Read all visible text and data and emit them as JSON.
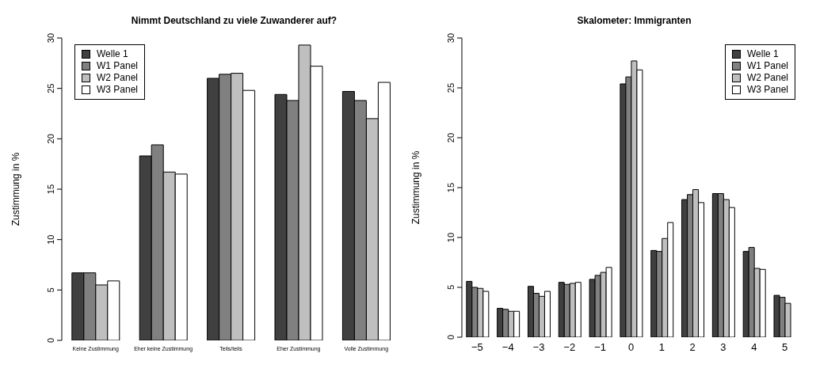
{
  "chart_data": [
    {
      "type": "bar",
      "title": "Nimmt Deutschland zu viele Zuwanderer auf?",
      "ylabel": "Zustimmung in %",
      "categories": [
        "Keine Zustimmung",
        "Eher keine Zustimmung",
        "Teils/teils",
        "Eher Zustimmung",
        "Volle Zustimmung"
      ],
      "series": [
        {
          "name": "Welle 1",
          "color": "#404040",
          "values": [
            6.7,
            18.3,
            26.0,
            24.4,
            24.7
          ]
        },
        {
          "name": "W1 Panel",
          "color": "#808080",
          "values": [
            6.7,
            19.4,
            26.4,
            23.8,
            23.8
          ]
        },
        {
          "name": "W2 Panel",
          "color": "#bfbfbf",
          "values": [
            5.5,
            16.7,
            26.5,
            29.3,
            22.0
          ]
        },
        {
          "name": "W3 Panel",
          "color": "#ffffff",
          "values": [
            5.9,
            16.5,
            24.8,
            27.2,
            25.6
          ]
        }
      ],
      "ylim": [
        0,
        30
      ],
      "yticks": [
        0,
        5,
        10,
        15,
        20,
        25,
        30
      ],
      "grid": false,
      "legend": "top left"
    },
    {
      "type": "bar",
      "title": "Skalometer: Immigranten",
      "ylabel": "Zustimmung in %",
      "categories": [
        "−5",
        "−4",
        "−3",
        "−2",
        "−1",
        "0",
        "1",
        "2",
        "3",
        "4",
        "5"
      ],
      "series": [
        {
          "name": "Welle 1",
          "color": "#404040",
          "values": [
            5.6,
            2.9,
            5.1,
            5.5,
            5.8,
            25.4,
            8.7,
            13.8,
            14.4,
            8.6,
            4.2
          ]
        },
        {
          "name": "W1 Panel",
          "color": "#808080",
          "values": [
            5.0,
            2.8,
            4.4,
            5.3,
            6.2,
            26.1,
            8.6,
            14.3,
            14.4,
            9.0,
            4.0
          ]
        },
        {
          "name": "W2 Panel",
          "color": "#bfbfbf",
          "values": [
            4.9,
            2.6,
            4.1,
            5.4,
            6.5,
            27.7,
            9.9,
            14.8,
            13.8,
            6.9,
            3.4
          ]
        },
        {
          "name": "W3 Panel",
          "color": "#ffffff",
          "values": [
            4.6,
            2.6,
            4.6,
            5.5,
            7.0,
            26.8,
            11.5,
            13.5,
            13.0,
            6.8,
            null
          ]
        }
      ],
      "ylim": [
        0,
        30
      ],
      "yticks": [
        0,
        5,
        10,
        15,
        20,
        25,
        30
      ],
      "grid": false,
      "legend": "top right"
    }
  ]
}
